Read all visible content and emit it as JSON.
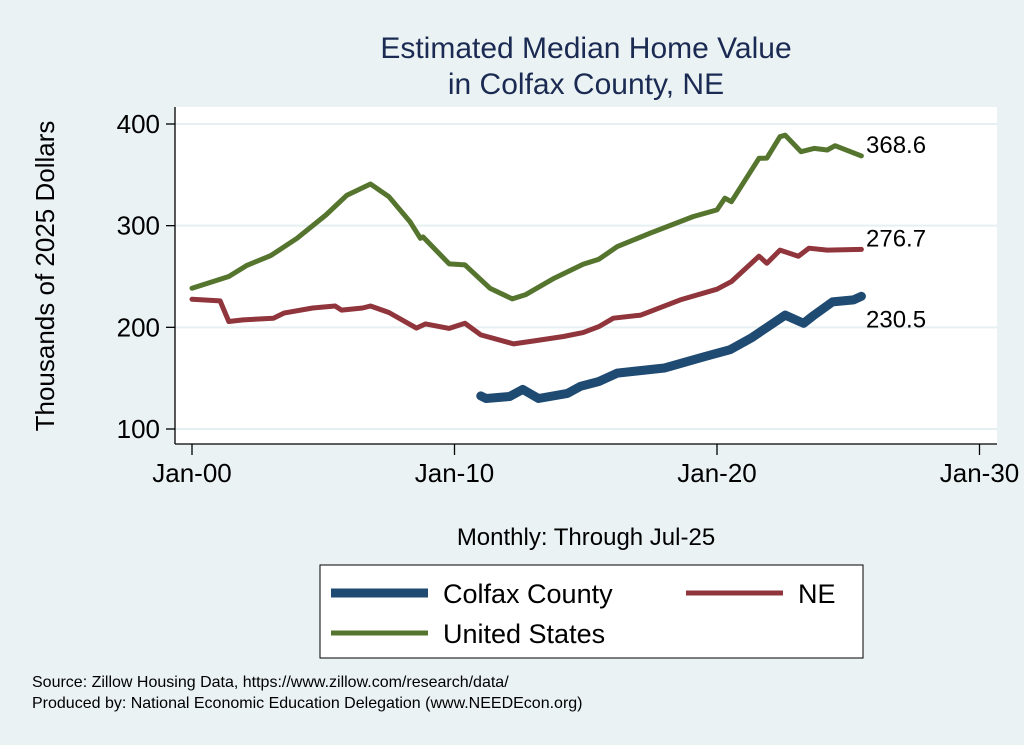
{
  "chart_data": {
    "type": "line",
    "title": [
      "Estimated Median Home Value",
      "in Colfax County, NE"
    ],
    "xlabel": "Monthly: Through Jul-25",
    "ylabel": "Thousands of 2025 Dollars",
    "xlim": [
      2000,
      2030
    ],
    "ylim": [
      100,
      400
    ],
    "x_ticks": [
      {
        "value": 2000,
        "label": "Jan-00"
      },
      {
        "value": 2010,
        "label": "Jan-10"
      },
      {
        "value": 2020,
        "label": "Jan-20"
      },
      {
        "value": 2030,
        "label": "Jan-30"
      }
    ],
    "y_ticks": [
      100,
      200,
      300,
      400
    ],
    "grid": "horizontal",
    "legend_placement": "bottom",
    "series": [
      {
        "name": "Colfax County",
        "color": "#1f4a72",
        "end_label": "230.5",
        "points": [
          [
            2011.0,
            132.6
          ],
          [
            2011.2,
            130
          ],
          [
            2012.1,
            132
          ],
          [
            2012.6,
            139
          ],
          [
            2013.2,
            130
          ],
          [
            2014.3,
            135
          ],
          [
            2014.8,
            142
          ],
          [
            2015.5,
            146.7
          ],
          [
            2016.2,
            155
          ],
          [
            2018.0,
            160
          ],
          [
            2019.5,
            171
          ],
          [
            2020.5,
            178
          ],
          [
            2021.3,
            189.4
          ],
          [
            2022.6,
            212
          ],
          [
            2023.3,
            204
          ],
          [
            2023.7,
            212
          ],
          [
            2024.4,
            225
          ],
          [
            2025.2,
            227
          ],
          [
            2025.5,
            230.5
          ]
        ]
      },
      {
        "name": "NE",
        "color": "#90353b",
        "end_label": "276.7",
        "points": [
          [
            2000,
            227.7
          ],
          [
            2001.07,
            226
          ],
          [
            2001.4,
            205.7
          ],
          [
            2001.95,
            207.3
          ],
          [
            2003.1,
            209
          ],
          [
            2003.5,
            214
          ],
          [
            2004.6,
            219
          ],
          [
            2005.45,
            221
          ],
          [
            2005.7,
            217
          ],
          [
            2006.5,
            219
          ],
          [
            2006.8,
            221
          ],
          [
            2007.5,
            214.6
          ],
          [
            2008.55,
            199.2
          ],
          [
            2008.9,
            203.4
          ],
          [
            2009.8,
            199
          ],
          [
            2010.4,
            204
          ],
          [
            2011.0,
            192.6
          ],
          [
            2012.25,
            183.7
          ],
          [
            2013.1,
            187
          ],
          [
            2014.15,
            191
          ],
          [
            2014.9,
            194.8
          ],
          [
            2015.5,
            200.7
          ],
          [
            2016.05,
            209
          ],
          [
            2017.1,
            212
          ],
          [
            2018.6,
            227
          ],
          [
            2020.0,
            237.5
          ],
          [
            2020.55,
            245
          ],
          [
            2021.6,
            270
          ],
          [
            2021.9,
            263
          ],
          [
            2022.4,
            276
          ],
          [
            2023.1,
            270
          ],
          [
            2023.5,
            277.8
          ],
          [
            2024.2,
            276
          ],
          [
            2025.5,
            276.7
          ]
        ]
      },
      {
        "name": "United States",
        "color": "#55752f",
        "end_label": "368.6",
        "points": [
          [
            2000,
            238.5
          ],
          [
            2001.4,
            250
          ],
          [
            2002.1,
            261
          ],
          [
            2003.0,
            270.6
          ],
          [
            2004.0,
            287.6
          ],
          [
            2005.1,
            310.5
          ],
          [
            2005.9,
            330
          ],
          [
            2006.8,
            341
          ],
          [
            2007.5,
            328.5
          ],
          [
            2008.3,
            304
          ],
          [
            2008.7,
            287.6
          ],
          [
            2008.8,
            289
          ],
          [
            2009.8,
            262.4
          ],
          [
            2010.4,
            261.4
          ],
          [
            2011.35,
            238.5
          ],
          [
            2012.2,
            228
          ],
          [
            2012.7,
            232
          ],
          [
            2013.8,
            248.3
          ],
          [
            2014.9,
            262
          ],
          [
            2015.5,
            267
          ],
          [
            2016.2,
            279.4
          ],
          [
            2017.45,
            292.6
          ],
          [
            2019.1,
            309
          ],
          [
            2020.0,
            315.5
          ],
          [
            2020.3,
            327
          ],
          [
            2020.55,
            323.6
          ],
          [
            2021.6,
            366.3
          ],
          [
            2021.9,
            366.5
          ],
          [
            2022.4,
            387.5
          ],
          [
            2022.6,
            389
          ],
          [
            2023.2,
            372.8
          ],
          [
            2023.7,
            376
          ],
          [
            2024.2,
            374.4
          ],
          [
            2024.5,
            378.7
          ],
          [
            2025.5,
            368.6
          ]
        ]
      }
    ]
  },
  "footer": {
    "source": "Source: Zillow Housing Data, https://www.zillow.com/research/data/",
    "produced_by": "Produced by: National Economic Education Delegation (www.NEEDEcon.org)"
  }
}
